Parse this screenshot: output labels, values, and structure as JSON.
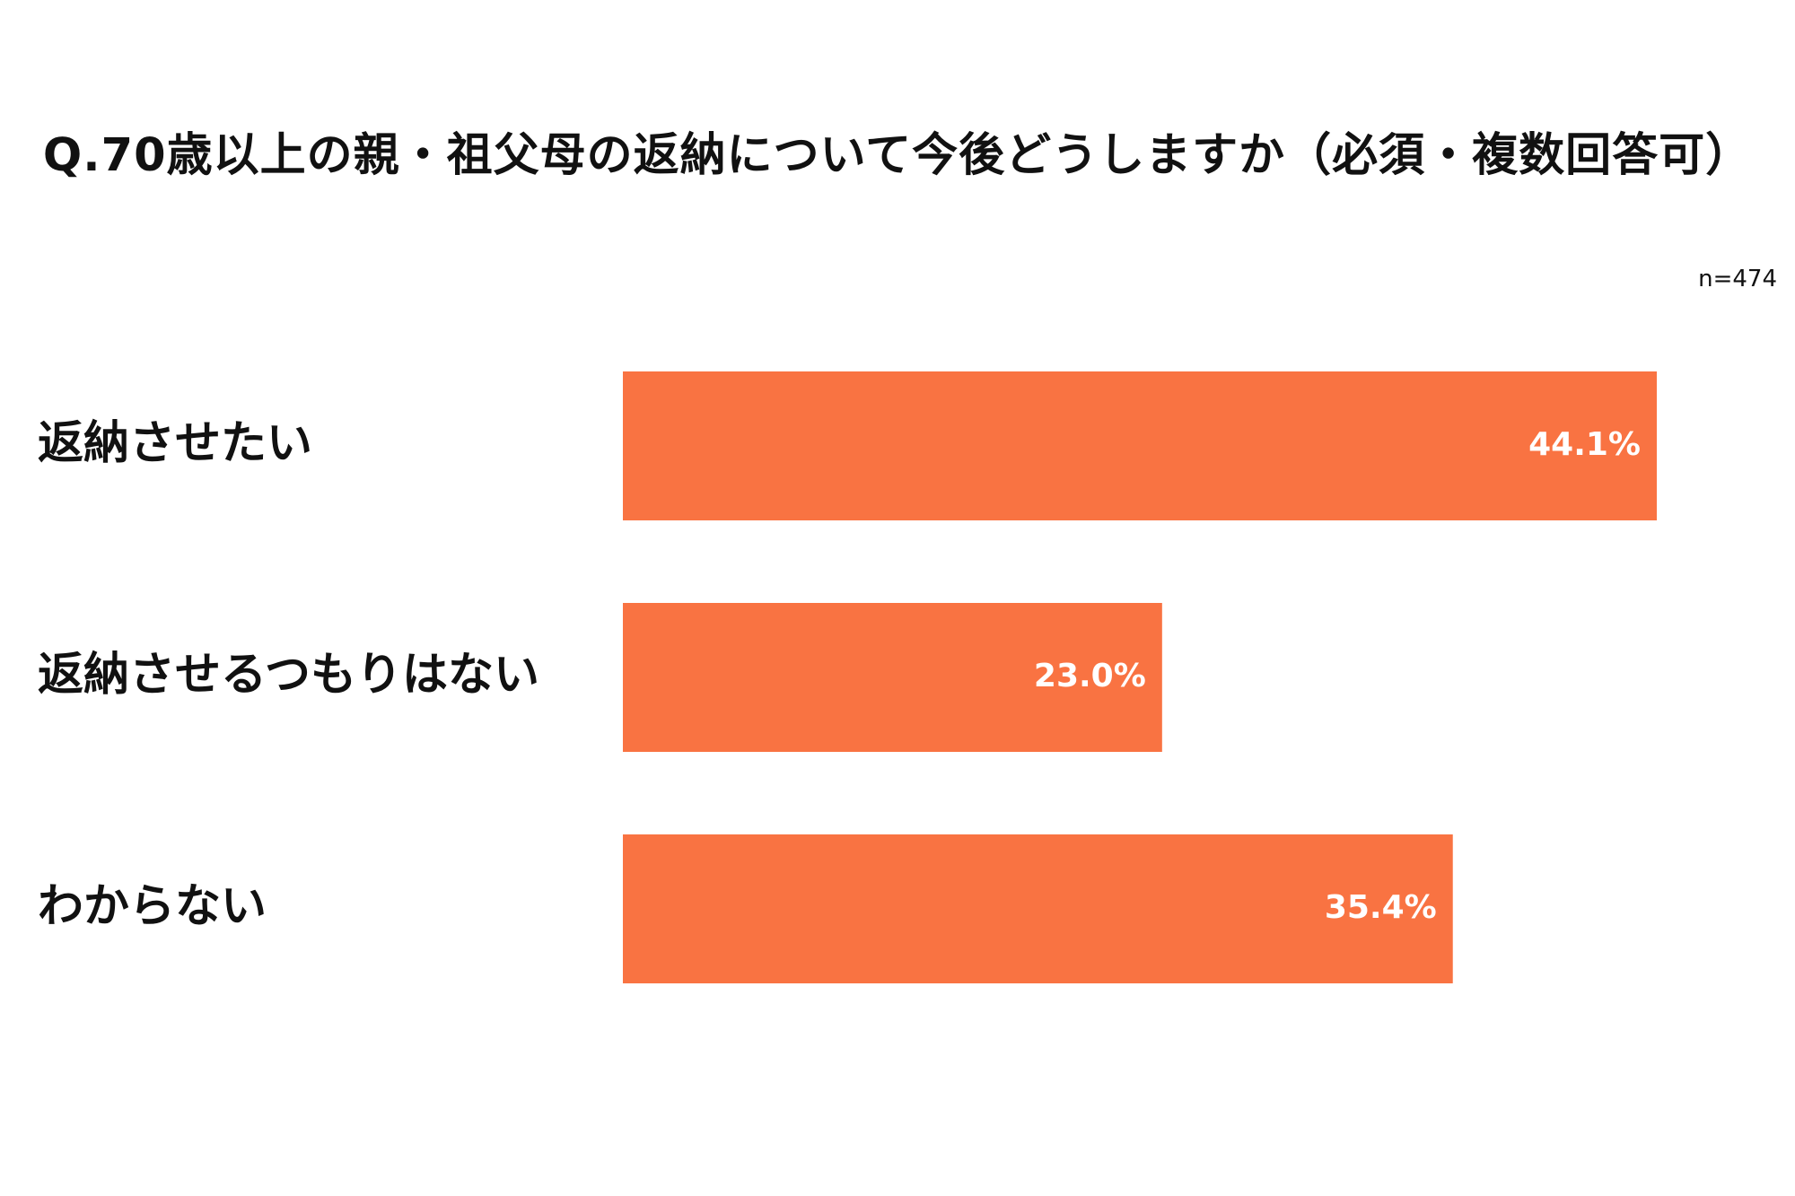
{
  "title": "Q.70歳以上の親・祖父母の返納について今後どうしますか（必須・複数回答可）",
  "sample_size": "n=474",
  "chart_data": {
    "type": "bar",
    "orientation": "horizontal",
    "title": "Q.70歳以上の親・祖父母の返納について今後どうしますか（必須・複数回答可）",
    "note": "n=474",
    "categories": [
      "返納させたい",
      "返納させるつもりはない",
      "わからない"
    ],
    "values": [
      44.1,
      23.0,
      35.4
    ],
    "value_labels": [
      "44.1%",
      "23.0%",
      "35.4%"
    ],
    "unit": "%",
    "bar_color": "#F97342",
    "label_color": "#FFFFFF",
    "grid": false,
    "legend": "none"
  }
}
